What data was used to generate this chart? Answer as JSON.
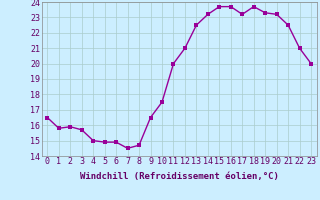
{
  "x": [
    0,
    1,
    2,
    3,
    4,
    5,
    6,
    7,
    8,
    9,
    10,
    11,
    12,
    13,
    14,
    15,
    16,
    17,
    18,
    19,
    20,
    21,
    22,
    23
  ],
  "y": [
    16.5,
    15.8,
    15.9,
    15.7,
    15.0,
    14.9,
    14.9,
    14.5,
    14.7,
    16.5,
    17.5,
    20.0,
    21.0,
    22.5,
    23.2,
    23.7,
    23.7,
    23.2,
    23.7,
    23.3,
    23.2,
    22.5,
    21.0,
    20.0
  ],
  "line_color": "#990099",
  "marker_color": "#990099",
  "bg_color": "#cceeff",
  "grid_color": "#aacccc",
  "xlabel": "Windchill (Refroidissement éolien,°C)",
  "ylim": [
    14,
    24
  ],
  "xlim_min": -0.5,
  "xlim_max": 23.5,
  "yticks": [
    14,
    15,
    16,
    17,
    18,
    19,
    20,
    21,
    22,
    23,
    24
  ],
  "xticks": [
    0,
    1,
    2,
    3,
    4,
    5,
    6,
    7,
    8,
    9,
    10,
    11,
    12,
    13,
    14,
    15,
    16,
    17,
    18,
    19,
    20,
    21,
    22,
    23
  ],
  "xlabel_fontsize": 6.5,
  "tick_fontsize": 6,
  "marker_size": 2.5,
  "line_width": 1.0
}
